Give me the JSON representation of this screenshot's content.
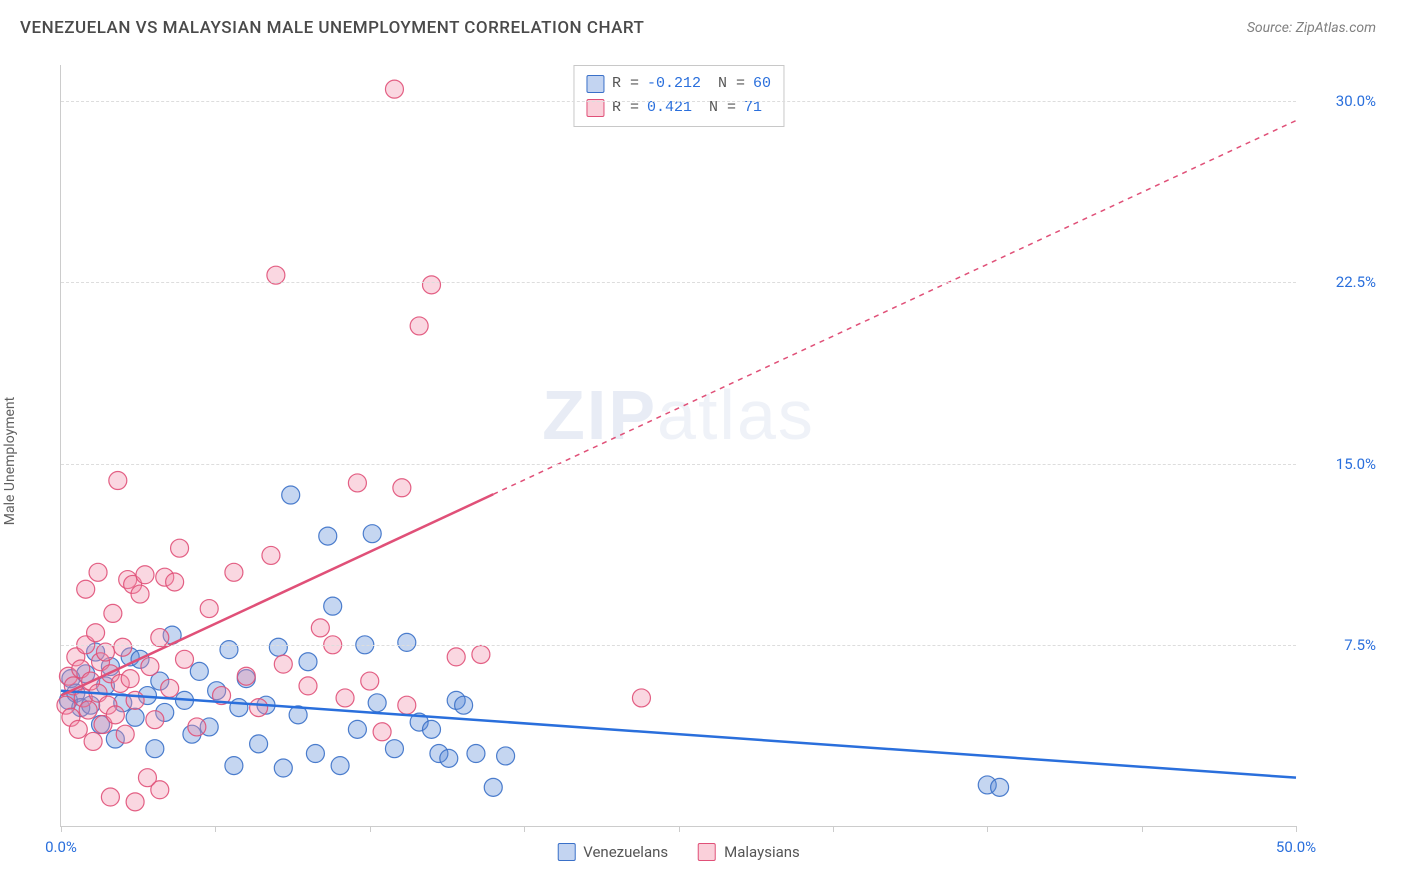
{
  "header": {
    "title": "VENEZUELAN VS MALAYSIAN MALE UNEMPLOYMENT CORRELATION CHART",
    "source_prefix": "Source: ",
    "source_name": "ZipAtlas.com"
  },
  "watermark": {
    "bold": "ZIP",
    "light": "atlas"
  },
  "chart": {
    "type": "scatter",
    "ylabel": "Male Unemployment",
    "xlim": [
      0,
      50
    ],
    "ylim": [
      0,
      31.5
    ],
    "xtick_positions": [
      0,
      6.25,
      12.5,
      18.75,
      25,
      31.25,
      37.5,
      43.75,
      50
    ],
    "xtick_labels": {
      "0": "0.0%",
      "50": "50.0%"
    },
    "xtick_color": "#2a6fdc",
    "ytick_positions": [
      7.5,
      15.0,
      22.5,
      30.0
    ],
    "ytick_labels": [
      "7.5%",
      "15.0%",
      "22.5%",
      "30.0%"
    ],
    "ytick_color": "#2a6fdc",
    "grid_color": "#dddddd",
    "axis_color": "#cccccc",
    "background_color": "#ffffff",
    "point_radius": 9,
    "series": [
      {
        "key": "venezuelans",
        "label": "Venezuelans",
        "fill": "#5a8ad8",
        "stroke": "#3a70c8",
        "R": "-0.212",
        "N": "60",
        "trend": {
          "x1": 0,
          "y1": 5.6,
          "x2": 50,
          "y2": 2.0,
          "color": "#2a6fdc",
          "dash_after_x": 50
        },
        "points": [
          [
            0.3,
            5.2
          ],
          [
            0.4,
            6.1
          ],
          [
            0.6,
            5.5
          ],
          [
            0.8,
            4.9
          ],
          [
            1.0,
            6.3
          ],
          [
            1.2,
            5.0
          ],
          [
            1.4,
            7.2
          ],
          [
            1.6,
            4.2
          ],
          [
            1.8,
            5.8
          ],
          [
            2.0,
            6.6
          ],
          [
            2.2,
            3.6
          ],
          [
            2.5,
            5.1
          ],
          [
            2.8,
            7.0
          ],
          [
            3.0,
            4.5
          ],
          [
            3.2,
            6.9
          ],
          [
            3.5,
            5.4
          ],
          [
            3.8,
            3.2
          ],
          [
            4.0,
            6.0
          ],
          [
            4.2,
            4.7
          ],
          [
            4.5,
            7.9
          ],
          [
            5.0,
            5.2
          ],
          [
            5.3,
            3.8
          ],
          [
            5.6,
            6.4
          ],
          [
            6.0,
            4.1
          ],
          [
            6.3,
            5.6
          ],
          [
            6.8,
            7.3
          ],
          [
            7.0,
            2.5
          ],
          [
            7.2,
            4.9
          ],
          [
            7.5,
            6.1
          ],
          [
            8.0,
            3.4
          ],
          [
            8.3,
            5.0
          ],
          [
            8.8,
            7.4
          ],
          [
            9.0,
            2.4
          ],
          [
            9.3,
            13.7
          ],
          [
            9.6,
            4.6
          ],
          [
            10.0,
            6.8
          ],
          [
            10.3,
            3.0
          ],
          [
            10.8,
            12.0
          ],
          [
            11.0,
            9.1
          ],
          [
            11.3,
            2.5
          ],
          [
            12.0,
            4.0
          ],
          [
            12.3,
            7.5
          ],
          [
            12.6,
            12.1
          ],
          [
            12.8,
            5.1
          ],
          [
            13.5,
            3.2
          ],
          [
            14.0,
            7.6
          ],
          [
            14.5,
            4.3
          ],
          [
            15.0,
            4.0
          ],
          [
            15.3,
            3.0
          ],
          [
            15.7,
            2.8
          ],
          [
            16.0,
            5.2
          ],
          [
            16.3,
            5.0
          ],
          [
            16.8,
            3.0
          ],
          [
            17.5,
            1.6
          ],
          [
            18.0,
            2.9
          ],
          [
            37.5,
            1.7
          ],
          [
            38.0,
            1.6
          ]
        ]
      },
      {
        "key": "malaysians",
        "label": "Malaysians",
        "fill": "#f08da8",
        "stroke": "#e05078",
        "R": " 0.421",
        "N": "71",
        "trend": {
          "x1": 0,
          "y1": 5.4,
          "x2": 50,
          "y2": 29.2,
          "color": "#e05078",
          "dash_after_x": 17.5
        },
        "points": [
          [
            0.2,
            5.0
          ],
          [
            0.3,
            6.2
          ],
          [
            0.4,
            4.5
          ],
          [
            0.5,
            5.8
          ],
          [
            0.6,
            7.0
          ],
          [
            0.7,
            4.0
          ],
          [
            0.8,
            6.5
          ],
          [
            0.9,
            5.3
          ],
          [
            1.0,
            7.5
          ],
          [
            1.1,
            4.8
          ],
          [
            1.2,
            6.0
          ],
          [
            1.3,
            3.5
          ],
          [
            1.4,
            8.0
          ],
          [
            1.5,
            5.5
          ],
          [
            1.6,
            6.8
          ],
          [
            1.7,
            4.2
          ],
          [
            1.8,
            7.2
          ],
          [
            1.9,
            5.0
          ],
          [
            2.0,
            6.3
          ],
          [
            2.1,
            8.8
          ],
          [
            2.2,
            4.6
          ],
          [
            2.3,
            14.3
          ],
          [
            2.4,
            5.9
          ],
          [
            2.5,
            7.4
          ],
          [
            2.6,
            3.8
          ],
          [
            2.7,
            10.2
          ],
          [
            2.8,
            6.1
          ],
          [
            2.9,
            10.0
          ],
          [
            3.0,
            5.2
          ],
          [
            3.2,
            9.6
          ],
          [
            3.4,
            10.4
          ],
          [
            3.6,
            6.6
          ],
          [
            3.8,
            4.4
          ],
          [
            4.0,
            7.8
          ],
          [
            4.2,
            10.3
          ],
          [
            4.4,
            5.7
          ],
          [
            4.6,
            10.1
          ],
          [
            4.8,
            11.5
          ],
          [
            5.0,
            6.9
          ],
          [
            5.5,
            4.1
          ],
          [
            6.0,
            9.0
          ],
          [
            6.5,
            5.4
          ],
          [
            7.0,
            10.5
          ],
          [
            7.5,
            6.2
          ],
          [
            8.0,
            4.9
          ],
          [
            8.5,
            11.2
          ],
          [
            8.7,
            22.8
          ],
          [
            9.0,
            6.7
          ],
          [
            10.0,
            5.8
          ],
          [
            10.5,
            8.2
          ],
          [
            11.0,
            7.5
          ],
          [
            11.5,
            5.3
          ],
          [
            12.0,
            14.2
          ],
          [
            12.5,
            6.0
          ],
          [
            13.0,
            3.9
          ],
          [
            13.5,
            30.5
          ],
          [
            13.8,
            14.0
          ],
          [
            14.0,
            5.0
          ],
          [
            14.5,
            20.7
          ],
          [
            15.0,
            22.4
          ],
          [
            16.0,
            7.0
          ],
          [
            17.0,
            7.1
          ],
          [
            23.5,
            5.3
          ],
          [
            3.0,
            1.0
          ],
          [
            2.0,
            1.2
          ],
          [
            3.5,
            2.0
          ],
          [
            4.0,
            1.5
          ],
          [
            1.5,
            10.5
          ],
          [
            1.0,
            9.8
          ]
        ]
      }
    ],
    "bottom_legend": [
      {
        "swatch": "sw-blue",
        "label": "Venezuelans"
      },
      {
        "swatch": "sw-pink",
        "label": "Malaysians"
      }
    ]
  }
}
